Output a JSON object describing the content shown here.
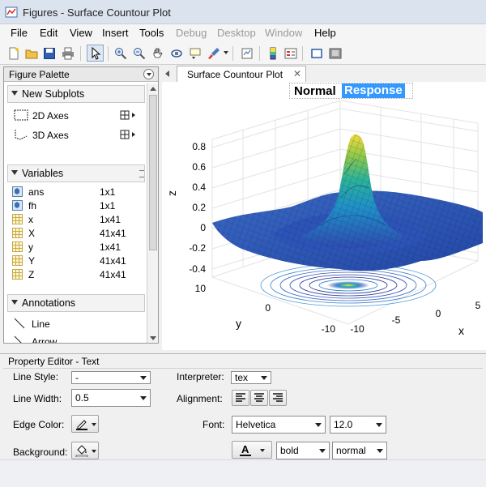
{
  "window": {
    "title": "Figures - Surface Countour Plot"
  },
  "menubar": {
    "items": [
      "File",
      "Edit",
      "View",
      "Insert",
      "Tools",
      "Debug",
      "Desktop",
      "Window",
      "Help"
    ],
    "disabled": [
      "Debug",
      "Desktop",
      "Window"
    ]
  },
  "palette": {
    "title": "Figure Palette",
    "sections": {
      "subplots": "New Subplots",
      "variables": "Variables",
      "annotations": "Annotations"
    },
    "subplots": [
      "2D Axes",
      "3D Axes"
    ],
    "variables": [
      {
        "name": "ans",
        "value": "1x1",
        "icon": "struct-icon"
      },
      {
        "name": "fh",
        "value": "1x1",
        "icon": "struct-icon"
      },
      {
        "name": "x",
        "value": "1x41",
        "icon": "grid-icon"
      },
      {
        "name": "X",
        "value": "41x41",
        "icon": "grid-icon"
      },
      {
        "name": "y",
        "value": "1x41",
        "icon": "grid-icon"
      },
      {
        "name": "Y",
        "value": "41x41",
        "icon": "grid-icon"
      },
      {
        "name": "Z",
        "value": "41x41",
        "icon": "grid-icon"
      }
    ],
    "annotations": [
      "Line",
      "Arrow"
    ]
  },
  "figure": {
    "tab_label": "Surface Countour Plot",
    "plot_title": {
      "normal": "Normal",
      "selected": "Response"
    },
    "zlabel": "z",
    "xlabel": "x",
    "ylabel": "y",
    "ztick_labels": [
      "0.8",
      "0.6",
      "0.4",
      "0.2",
      "0",
      "-0.2",
      "-0.4"
    ],
    "xtick_labels": [
      "-10",
      "-5",
      "0",
      "5"
    ],
    "ytick_labels": [
      "10",
      "0",
      "-10"
    ]
  },
  "property_editor": {
    "title": "Property Editor - Text",
    "line_style_label": "Line Style:",
    "line_style_value": "-",
    "line_width_label": "Line Width:",
    "line_width_value": "0.5",
    "edge_color_label": "Edge Color:",
    "background_label": "Background:",
    "interpreter_label": "Interpreter:",
    "interpreter_value": "tex",
    "alignment_label": "Alignment:",
    "font_label": "Font:",
    "font_value": "Helvetica",
    "font_size_value": "12.0",
    "weight_value": "bold",
    "angle_value": "normal"
  },
  "colors": {
    "selection": "#3399ff",
    "surface_low": "#2b3f9a",
    "surface_high": "#f5e63b"
  }
}
